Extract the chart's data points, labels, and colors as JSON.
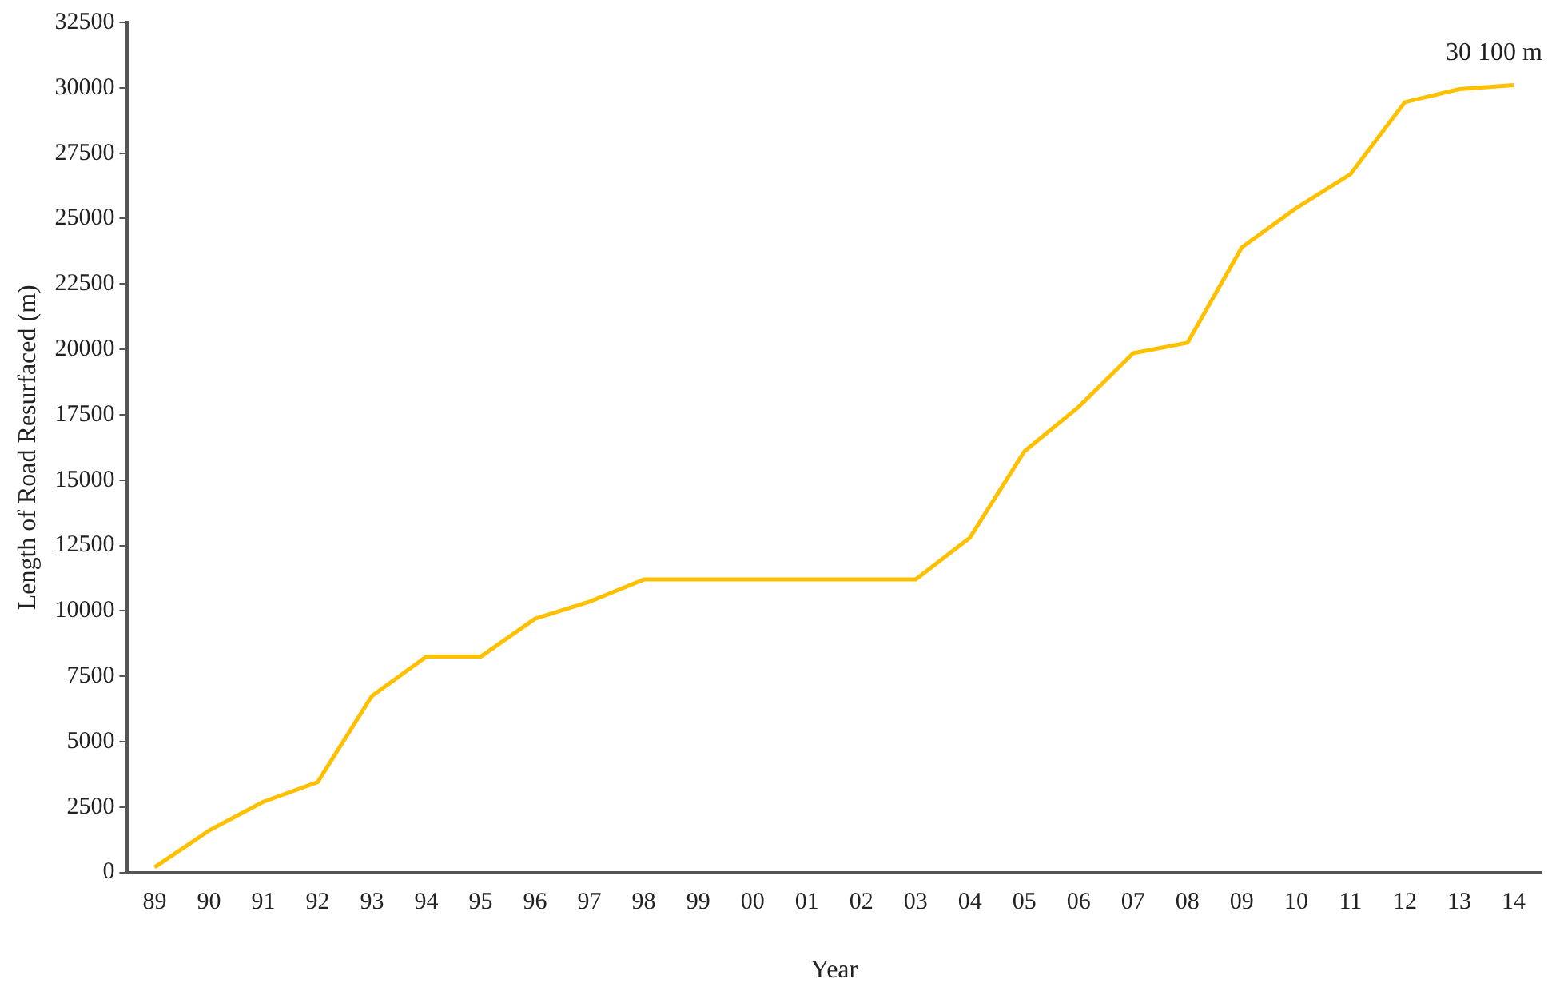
{
  "chart_data": {
    "type": "line",
    "xlabel": "Year",
    "ylabel": "Length of Road Resurfaced (m)",
    "categories": [
      "89",
      "90",
      "91",
      "92",
      "93",
      "94",
      "95",
      "96",
      "97",
      "98",
      "99",
      "00",
      "01",
      "02",
      "03",
      "04",
      "05",
      "06",
      "07",
      "08",
      "09",
      "10",
      "11",
      "12",
      "13",
      "14"
    ],
    "series": [
      {
        "color": "#ffc000",
        "values": [
          200,
          1600,
          2700,
          3450,
          6750,
          8250,
          8250,
          9700,
          10350,
          11200,
          11200,
          11200,
          11200,
          11200,
          11200,
          12800,
          16100,
          17800,
          19850,
          20250,
          23900,
          25400,
          26700,
          29450,
          29950,
          30100
        ]
      }
    ],
    "ylim": [
      0,
      32500
    ],
    "yticks": [
      0,
      2500,
      5000,
      7500,
      10000,
      12500,
      15000,
      17500,
      20000,
      22500,
      25000,
      27500,
      30000,
      32500
    ],
    "annotations": [
      {
        "text": "30 100 m",
        "x": "14",
        "y": 30100
      }
    ],
    "grid": false,
    "legend": false,
    "marker": "none",
    "line_style": "solid"
  }
}
